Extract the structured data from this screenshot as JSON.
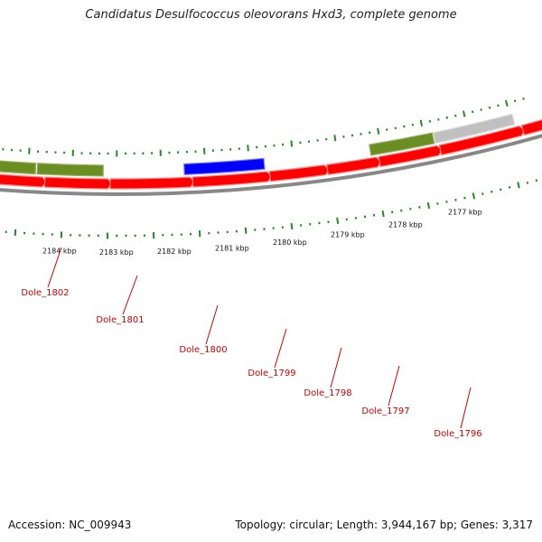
{
  "title": "Candidatus Desulfococcus oleovorans Hxd3, complete genome",
  "footer": {
    "accession": "Accession: NC_009943",
    "summary": "Topology: circular; Length: 3,944,167 bp; Genes: 3,317"
  },
  "colors": {
    "backbone": "#888888",
    "forward_gene": "#ff0000",
    "reverse_gene": "#6b8e23",
    "highlight_gene": "#0000ff",
    "other_gene": "#c0c0c0",
    "tick": "#228b22",
    "gene_label": "#cc0000"
  },
  "kbp_marks": [
    "2184 kbp",
    "2183 kbp",
    "2182 kbp",
    "2181 kbp",
    "2180 kbp",
    "2179 kbp",
    "2178 kbp",
    "2177 kbp"
  ],
  "genes": [
    {
      "id": "Dole_1802",
      "strand": "reverse",
      "kind": "reverse"
    },
    {
      "id": "Dole_1801",
      "strand": "forward",
      "kind": "forward"
    },
    {
      "id": "Dole_1800",
      "strand": "reverse",
      "kind": "highlight"
    },
    {
      "id": "Dole_1799",
      "strand": "forward",
      "kind": "forward"
    },
    {
      "id": "Dole_1798",
      "strand": "forward",
      "kind": "forward"
    },
    {
      "id": "Dole_1797",
      "strand": "reverse",
      "kind": "reverse"
    },
    {
      "id": "Dole_1796",
      "strand": "reverse",
      "kind": "other"
    }
  ]
}
